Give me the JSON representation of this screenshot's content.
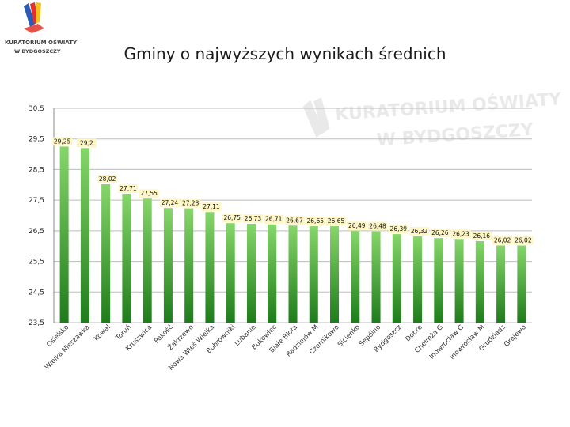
{
  "logo": {
    "line1": "KURATORIUM OŚWIATY",
    "line2": "W BYDGOSZCZY"
  },
  "colors": {
    "bar_top": "#86d66a",
    "bar_bottom": "#1e7c1a",
    "grid": "#bdbdbd",
    "axis": "#888888",
    "label_bg": "#fff6c6"
  },
  "chart_data": {
    "type": "bar",
    "title": "Gminy o najwyższych wynikach średnich",
    "xlabel": "",
    "ylabel": "",
    "ylim": [
      23.5,
      30.5
    ],
    "yticks": [
      "30,5",
      "29,5",
      "28,5",
      "27,5",
      "26,5",
      "25,5",
      "24,5",
      "23,5"
    ],
    "grid": true,
    "legend": "none",
    "categories": [
      "Osielsko",
      "Wielka Nieszawka",
      "Kowal",
      "Toruń",
      "Kruszwica",
      "Pakość",
      "Żakrzewo",
      "Nowa Wieś Wielka",
      "Bobrowniki",
      "Lubanie",
      "Bukowiec",
      "Białe Błota",
      "Radziejów M",
      "Czernikowo",
      "Sicienko",
      "Sępólno",
      "Bydgoszcz",
      "Dobre",
      "Chełmża G",
      "Inowrocław G",
      "Inowrocław M",
      "Grudziądz",
      "Grajewo"
    ],
    "values": [
      29.25,
      29.2,
      28.02,
      27.71,
      27.55,
      27.24,
      27.23,
      27.11,
      26.75,
      26.73,
      26.71,
      26.67,
      26.65,
      26.65,
      26.49,
      26.48,
      26.39,
      26.32,
      26.26,
      26.23,
      26.16,
      26.02,
      26.02
    ],
    "value_labels": [
      "29,25",
      "29,2",
      "28,02",
      "27,71",
      "27,55",
      "27,24",
      "27,23",
      "27,11",
      "26,75",
      "26,73",
      "26,71",
      "26,67",
      "26,65",
      "26,65",
      "26,49",
      "26,48",
      "26,39",
      "26,32",
      "26,26",
      "26,23",
      "26,16",
      "26,02",
      "26,02"
    ]
  }
}
